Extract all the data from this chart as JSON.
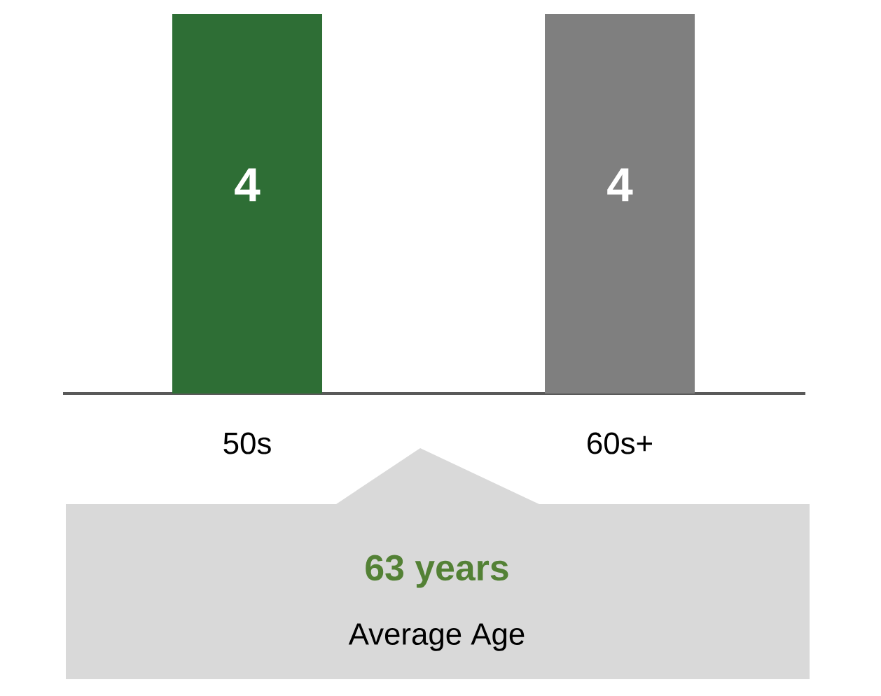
{
  "chart_data": {
    "type": "bar",
    "categories": [
      "50s",
      "60s+"
    ],
    "values": [
      4,
      4
    ],
    "colors": [
      "#2e6e35",
      "#7f7f7f"
    ],
    "ylim": [
      0,
      4
    ],
    "data_labels": true,
    "annotations": [
      "63 years",
      "Average Age"
    ]
  }
}
